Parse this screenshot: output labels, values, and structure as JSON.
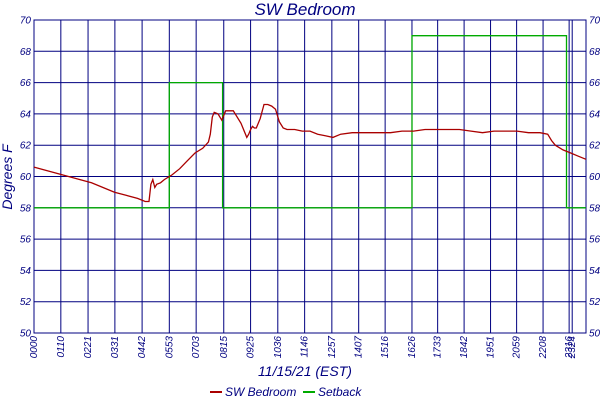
{
  "chart_data": {
    "type": "line",
    "title": "SW Bedroom",
    "xlabel": "11/15/21 (EST)",
    "ylabel": "Degrees F",
    "ylim": [
      50,
      70
    ],
    "yticks": [
      50,
      52,
      54,
      56,
      58,
      60,
      62,
      64,
      66,
      68,
      70
    ],
    "xlim": [
      0,
      1440
    ],
    "x_unit": "minutes since 00:00",
    "grid": true,
    "legend_position": "bottom-center",
    "x_tick_labels": [
      "0000",
      "0110",
      "0221",
      "0331",
      "0442",
      "0553",
      "0703",
      "0815",
      "0925",
      "1036",
      "1146",
      "1257",
      "1407",
      "1516",
      "1626",
      "1733",
      "1842",
      "1951",
      "2059",
      "2208",
      "2316",
      "2324"
    ],
    "x_tick_positions": [
      0,
      70,
      141,
      211,
      282,
      353,
      423,
      495,
      565,
      636,
      706,
      777,
      847,
      916,
      986,
      1053,
      1122,
      1191,
      1259,
      1328,
      1396,
      1404
    ],
    "series": [
      {
        "name": "SW Bedroom",
        "color": "#aa0000",
        "x": [
          0,
          30,
          60,
          90,
          120,
          150,
          180,
          210,
          240,
          270,
          290,
          300,
          305,
          310,
          315,
          320,
          330,
          340,
          360,
          380,
          400,
          420,
          440,
          455,
          460,
          465,
          470,
          480,
          490,
          500,
          520,
          540,
          555,
          560,
          565,
          570,
          575,
          580,
          590,
          600,
          610,
          620,
          630,
          640,
          650,
          660,
          680,
          700,
          720,
          740,
          760,
          780,
          800,
          830,
          870,
          900,
          930,
          960,
          990,
          1020,
          1050,
          1080,
          1110,
          1140,
          1170,
          1200,
          1230,
          1260,
          1290,
          1320,
          1340,
          1350,
          1360,
          1380,
          1400,
          1420,
          1440
        ],
        "y": [
          60.6,
          60.4,
          60.2,
          60.0,
          59.8,
          59.6,
          59.3,
          59.0,
          58.8,
          58.6,
          58.4,
          58.4,
          59.5,
          59.8,
          59.3,
          59.5,
          59.6,
          59.8,
          60.1,
          60.5,
          61.0,
          61.5,
          61.8,
          62.2,
          62.7,
          63.8,
          64.1,
          64.0,
          63.6,
          64.2,
          64.2,
          63.4,
          62.5,
          62.7,
          63.0,
          63.2,
          63.1,
          63.1,
          63.7,
          64.6,
          64.6,
          64.5,
          64.3,
          63.5,
          63.1,
          63.0,
          63.0,
          62.9,
          62.9,
          62.7,
          62.6,
          62.5,
          62.7,
          62.8,
          62.8,
          62.8,
          62.8,
          62.9,
          62.9,
          63.0,
          63.0,
          63.0,
          63.0,
          62.9,
          62.8,
          62.9,
          62.9,
          62.9,
          62.8,
          62.8,
          62.7,
          62.3,
          62.0,
          61.7,
          61.5,
          61.3,
          61.1
        ]
      },
      {
        "name": "Setback",
        "color": "#00aa00",
        "x": [
          0,
          353,
          353,
          492,
          492,
          986,
          986,
          1389,
          1389,
          1440
        ],
        "y": [
          58,
          58,
          66,
          66,
          58,
          58,
          69,
          69,
          58,
          58
        ]
      }
    ]
  }
}
